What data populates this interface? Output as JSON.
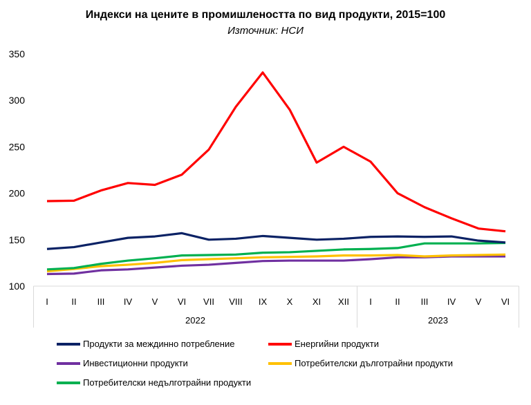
{
  "chart_data": {
    "type": "line",
    "title": "Индекси на цените в промишлеността по вид продукти, 2015=100",
    "subtitle": "Източник: НСИ",
    "categories": [
      "I",
      "II",
      "III",
      "IV",
      "V",
      "VI",
      "VII",
      "VIII",
      "IX",
      "X",
      "XI",
      "XII",
      "I",
      "II",
      "III",
      "IV",
      "V",
      "VI"
    ],
    "year_groups": [
      {
        "label": "2022",
        "count": 12
      },
      {
        "label": "2023",
        "count": 6
      }
    ],
    "ylim": [
      100,
      350
    ],
    "yticks": [
      100,
      150,
      200,
      250,
      300,
      350
    ],
    "legend_position": "bottom",
    "series": [
      {
        "name": "Продукти за междинно потребление",
        "color": "#0b2265",
        "values": [
          140,
          142,
          147,
          152,
          153.5,
          157,
          150,
          151,
          154,
          152,
          150,
          151,
          153,
          153.5,
          153,
          153.5,
          149,
          147
        ]
      },
      {
        "name": "Енергийни продукти",
        "color": "#ff0000",
        "values": [
          191.5,
          192,
          203,
          211,
          209,
          220,
          247,
          293,
          330,
          290,
          233,
          250,
          234,
          200,
          185,
          173,
          162,
          159
        ]
      },
      {
        "name": "Инвестиционни продукти",
        "color": "#7030a0",
        "values": [
          113,
          113.5,
          117,
          118,
          120,
          122,
          123,
          125,
          127,
          127.5,
          127.5,
          127.5,
          129,
          131,
          131,
          132,
          132,
          132
        ]
      },
      {
        "name": "Потребителски дълготрайни продукти",
        "color": "#ffc000",
        "values": [
          116,
          118.5,
          121.5,
          123,
          125,
          128,
          129,
          130,
          131,
          131.5,
          132,
          133,
          133,
          133.5,
          132,
          133,
          133.5,
          134
        ]
      },
      {
        "name": "Потребителски недълготрайни продукти",
        "color": "#00b050",
        "values": [
          118,
          119.5,
          124,
          127.5,
          130,
          133,
          133.5,
          134,
          136,
          136.5,
          138,
          139.5,
          140,
          141,
          146,
          146,
          146,
          146.5
        ]
      }
    ]
  }
}
